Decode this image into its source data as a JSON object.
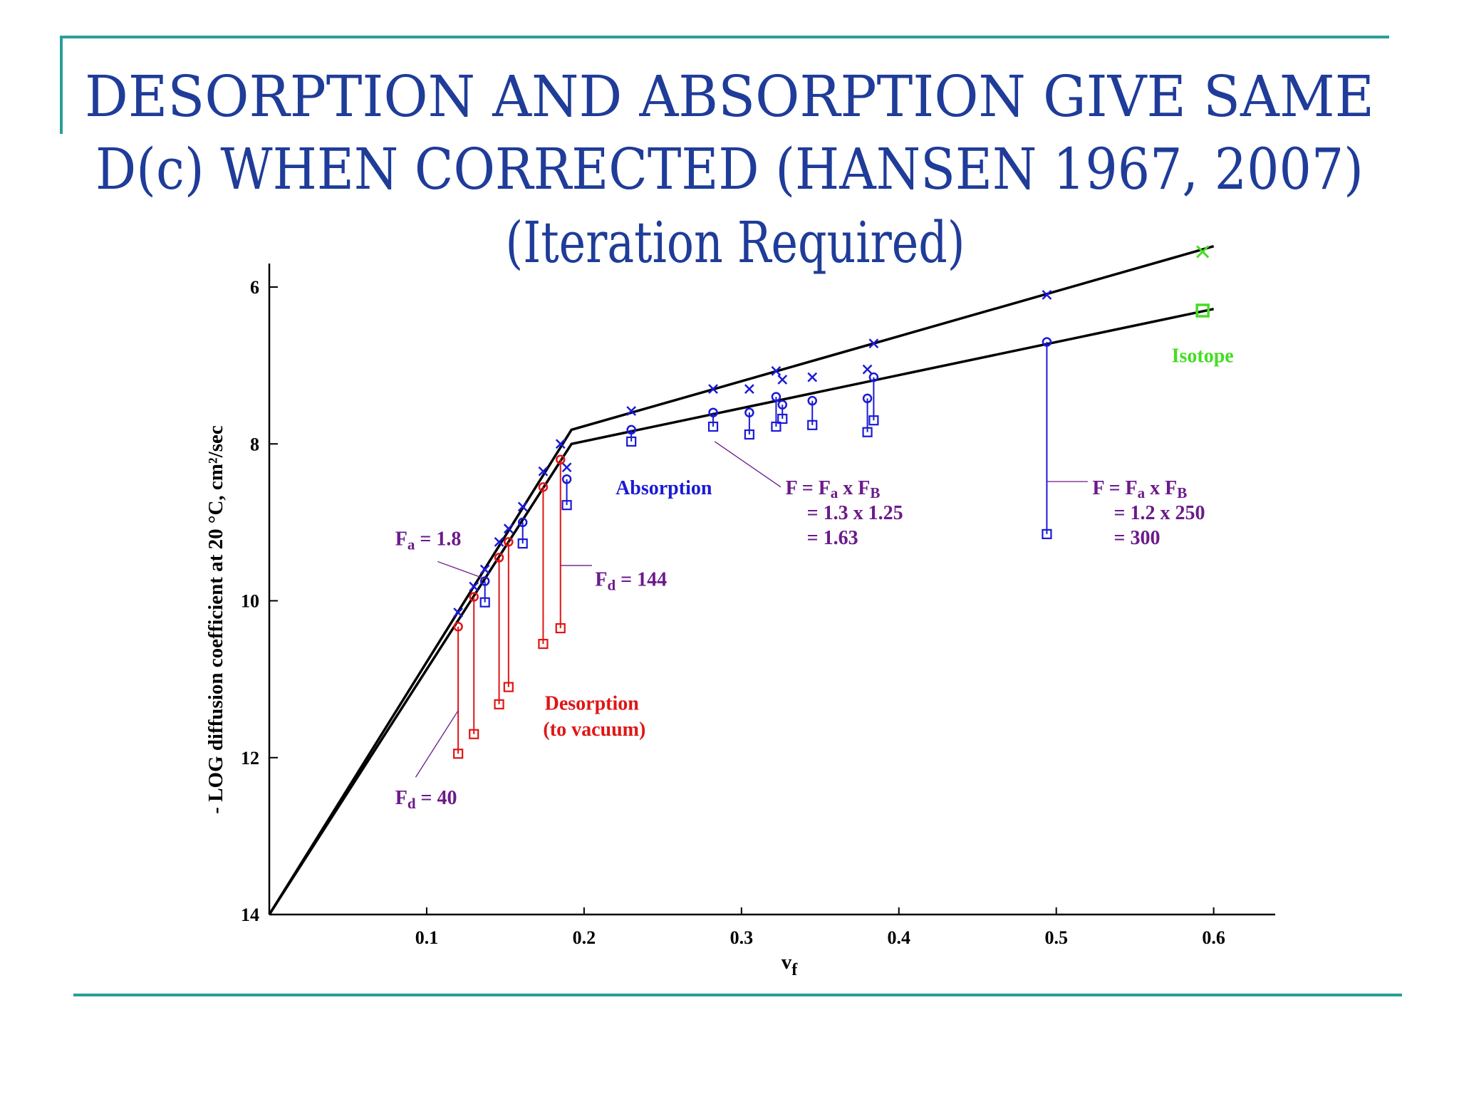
{
  "slide": {
    "title_lines": [
      "DESORPTION AND ABSORPTION GIVE SAME",
      "D(c) WHEN CORRECTED (HANSEN 1967, 2007)",
      "(Iteration Required)"
    ],
    "colors": {
      "title": "#1f3c99",
      "rule": "#2a9d9b"
    }
  },
  "chart_data": {
    "type": "scatter",
    "xlabel": "v",
    "xlabel_sub": "f",
    "ylabel": "- LOG diffusion coefficient at 20 °C, cm²/sec",
    "xlim": [
      0,
      0.64
    ],
    "ylim": [
      14,
      5.7
    ],
    "y_inverted": true,
    "x_ticks": [
      "0.1",
      "0.2",
      "0.3",
      "0.4",
      "0.5",
      "0.6"
    ],
    "y_ticks": [
      "6",
      "8",
      "10",
      "12",
      "14"
    ],
    "grid": false,
    "colors": {
      "absorption": "#1a1ad6",
      "desorption": "#e01515",
      "isotope": "#44dd22",
      "annotation": "#6b1a8a",
      "line": "#000000"
    },
    "fit_lines": [
      {
        "points": [
          [
            0,
            14
          ],
          [
            0.192,
            7.82
          ],
          [
            0.6,
            5.48
          ]
        ]
      },
      {
        "points": [
          [
            0,
            14
          ],
          [
            0.192,
            8.0
          ],
          [
            0.6,
            6.28
          ]
        ]
      }
    ],
    "absorption": [
      {
        "x": 0.12,
        "cross": 10.15,
        "circle": null,
        "square": null
      },
      {
        "x": 0.13,
        "cross": 9.82,
        "circle": null,
        "square": null
      },
      {
        "x": 0.137,
        "cross": 9.6,
        "circle": 9.75,
        "square": 10.02
      },
      {
        "x": 0.146,
        "cross": 9.25,
        "circle": null,
        "square": null
      },
      {
        "x": 0.152,
        "cross": 9.08,
        "circle": null,
        "square": null
      },
      {
        "x": 0.161,
        "cross": 8.8,
        "circle": 9.0,
        "square": 9.27
      },
      {
        "x": 0.174,
        "cross": 8.35,
        "circle": null,
        "square": null
      },
      {
        "x": 0.185,
        "cross": 8.0,
        "circle": null,
        "square": null
      },
      {
        "x": 0.189,
        "cross": 8.3,
        "circle": 8.45,
        "square": 8.78
      },
      {
        "x": 0.23,
        "cross": 7.58,
        "circle": 7.82,
        "square": 7.97
      },
      {
        "x": 0.282,
        "cross": 7.3,
        "circle": 7.6,
        "square": 7.78
      },
      {
        "x": 0.305,
        "cross": 7.3,
        "circle": 7.6,
        "square": 7.88
      },
      {
        "x": 0.322,
        "cross": 7.07,
        "circle": 7.4,
        "square": 7.78
      },
      {
        "x": 0.326,
        "cross": 7.18,
        "circle": 7.5,
        "square": 7.68
      },
      {
        "x": 0.345,
        "cross": 7.15,
        "circle": 7.45,
        "square": 7.76
      },
      {
        "x": 0.38,
        "cross": 7.05,
        "circle": 7.42,
        "square": 7.85
      },
      {
        "x": 0.384,
        "cross": 6.72,
        "circle": 7.15,
        "square": 7.7
      },
      {
        "x": 0.494,
        "cross": 6.1,
        "circle": 6.7,
        "square": 9.15
      }
    ],
    "desorption": [
      {
        "x": 0.12,
        "circle": 10.33,
        "square": 11.95
      },
      {
        "x": 0.13,
        "circle": 9.95,
        "square": 11.7
      },
      {
        "x": 0.146,
        "circle": 9.45,
        "square": 11.32
      },
      {
        "x": 0.152,
        "circle": 9.25,
        "square": 11.1
      },
      {
        "x": 0.174,
        "circle": 8.55,
        "square": 10.55
      },
      {
        "x": 0.185,
        "circle": 8.2,
        "square": 10.35
      }
    ],
    "isotope": {
      "x": 0.593,
      "cross": 5.55,
      "square": 6.3,
      "label": "Isotope"
    },
    "annotations": [
      {
        "id": "fa",
        "text": "F",
        "sub": "a",
        "rest": " = 1.8",
        "color": "annotation",
        "at": [
          0.08,
          9.2
        ],
        "leader": [
          [
            0.107,
            9.5
          ],
          [
            0.137,
            9.72
          ]
        ]
      },
      {
        "id": "fd144",
        "text": "F",
        "sub": "d",
        "rest": " = 144",
        "color": "annotation",
        "at": [
          0.207,
          9.72
        ],
        "leader": [
          [
            0.205,
            9.55
          ],
          [
            0.185,
            9.55
          ]
        ]
      },
      {
        "id": "fd40",
        "text": "F",
        "sub": "d",
        "rest": " = 40",
        "color": "annotation",
        "at": [
          0.08,
          12.5
        ],
        "leader": [
          [
            0.093,
            12.25
          ],
          [
            0.12,
            11.4
          ]
        ]
      },
      {
        "id": "abs",
        "text": "Absorption",
        "color": "absorption",
        "at": [
          0.22,
          8.55
        ]
      },
      {
        "id": "des1",
        "text": "Desorption",
        "color": "desorption",
        "at": [
          0.175,
          11.3
        ]
      },
      {
        "id": "des2",
        "text": "(to vacuum)",
        "color": "desorption",
        "at": [
          0.174,
          11.63
        ]
      },
      {
        "id": "f1",
        "color": "annotation",
        "lines": [
          [
            "F = F",
            "a",
            " x F",
            "B"
          ],
          [
            "= 1.3 x 1.25"
          ],
          [
            "= 1.63"
          ]
        ],
        "at": [
          0.328,
          8.55
        ],
        "leader": [
          [
            0.325,
            8.55
          ],
          [
            0.283,
            7.97
          ]
        ]
      },
      {
        "id": "f2",
        "color": "annotation",
        "lines": [
          [
            "F = F",
            "a",
            " x F",
            "B"
          ],
          [
            "= 1.2 x 250"
          ],
          [
            "= 300"
          ]
        ],
        "at": [
          0.523,
          8.55
        ],
        "leader": [
          [
            0.52,
            8.48
          ],
          [
            0.494,
            8.48
          ]
        ]
      }
    ]
  }
}
